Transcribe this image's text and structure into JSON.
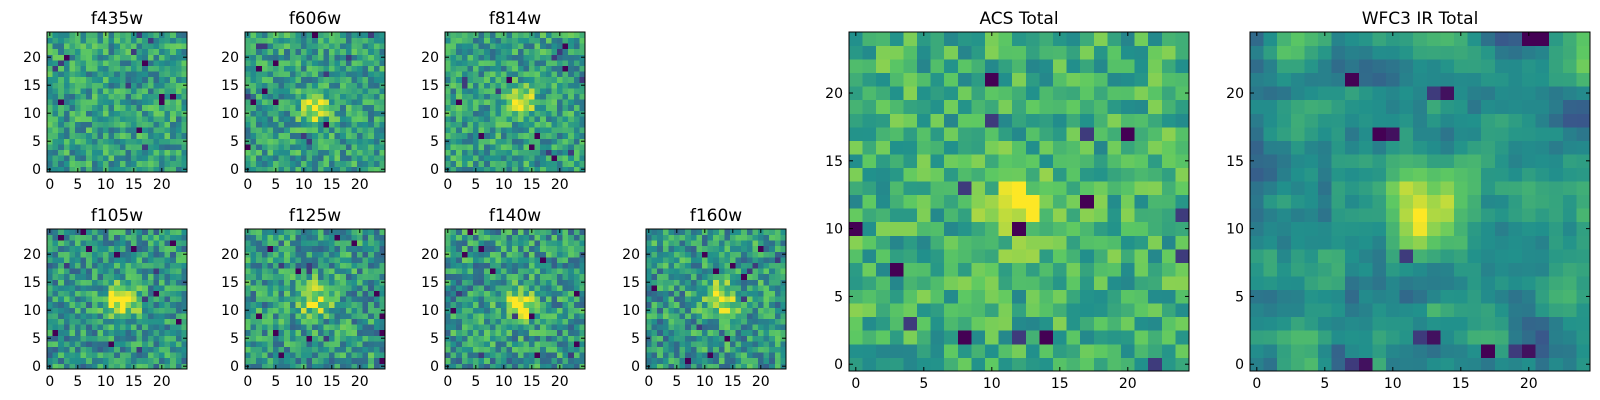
{
  "figure": {
    "colormap": "viridis",
    "colormap_stops": [
      "#440154",
      "#3b528b",
      "#21918c",
      "#5ec962",
      "#fde725"
    ]
  },
  "chart_data": [
    {
      "type": "heatmap",
      "title": "f435w",
      "grid_size": [
        25,
        25
      ],
      "xlim": [
        -0.5,
        24.5
      ],
      "ylim": [
        -0.5,
        24.5
      ],
      "xticks": [
        0,
        5,
        10,
        15,
        20
      ],
      "yticks": [
        0,
        5,
        10,
        15,
        20
      ],
      "origin": "lower",
      "seed": 11,
      "noise_level": [
        0.35,
        0.78
      ],
      "peak": {
        "x": 11,
        "y": 11,
        "sigma": 2.0,
        "amplitude": 0.0
      },
      "dark_pixels": 14
    },
    {
      "type": "heatmap",
      "title": "f606w",
      "grid_size": [
        25,
        25
      ],
      "xlim": [
        -0.5,
        24.5
      ],
      "ylim": [
        -0.5,
        24.5
      ],
      "xticks": [
        0,
        5,
        10,
        15,
        20
      ],
      "yticks": [
        0,
        5,
        10,
        15,
        20
      ],
      "origin": "lower",
      "seed": 23,
      "noise_level": [
        0.35,
        0.78
      ],
      "peak": {
        "x": 12,
        "y": 11,
        "sigma": 1.8,
        "amplitude": 0.45
      },
      "dark_pixels": 16
    },
    {
      "type": "heatmap",
      "title": "f814w",
      "grid_size": [
        25,
        25
      ],
      "xlim": [
        -0.5,
        24.5
      ],
      "ylim": [
        -0.5,
        24.5
      ],
      "xticks": [
        0,
        5,
        10,
        15,
        20
      ],
      "yticks": [
        0,
        5,
        10,
        15,
        20
      ],
      "origin": "lower",
      "seed": 37,
      "noise_level": [
        0.35,
        0.78
      ],
      "peak": {
        "x": 13,
        "y": 12,
        "sigma": 1.8,
        "amplitude": 0.45
      },
      "dark_pixels": 16
    },
    {
      "type": "heatmap",
      "title": "f105w",
      "grid_size": [
        25,
        25
      ],
      "xlim": [
        -0.5,
        24.5
      ],
      "ylim": [
        -0.5,
        24.5
      ],
      "xticks": [
        0,
        5,
        10,
        15,
        20
      ],
      "yticks": [
        0,
        5,
        10,
        15,
        20
      ],
      "origin": "lower",
      "seed": 41,
      "noise_level": [
        0.3,
        0.75
      ],
      "peak": {
        "x": 13,
        "y": 12,
        "sigma": 2.2,
        "amplitude": 0.5
      },
      "dark_pixels": 14
    },
    {
      "type": "heatmap",
      "title": "f125w",
      "grid_size": [
        25,
        25
      ],
      "xlim": [
        -0.5,
        24.5
      ],
      "ylim": [
        -0.5,
        24.5
      ],
      "xticks": [
        0,
        5,
        10,
        15,
        20
      ],
      "yticks": [
        0,
        5,
        10,
        15,
        20
      ],
      "origin": "lower",
      "seed": 53,
      "noise_level": [
        0.3,
        0.78
      ],
      "peak": {
        "x": 12,
        "y": 12,
        "sigma": 2.2,
        "amplitude": 0.35
      },
      "dark_pixels": 16
    },
    {
      "type": "heatmap",
      "title": "f140w",
      "grid_size": [
        25,
        25
      ],
      "xlim": [
        -0.5,
        24.5
      ],
      "ylim": [
        -0.5,
        24.5
      ],
      "xticks": [
        0,
        5,
        10,
        15,
        20
      ],
      "yticks": [
        0,
        5,
        10,
        15,
        20
      ],
      "origin": "lower",
      "seed": 67,
      "noise_level": [
        0.3,
        0.78
      ],
      "peak": {
        "x": 13,
        "y": 11,
        "sigma": 2.2,
        "amplitude": 0.4
      },
      "dark_pixels": 14
    },
    {
      "type": "heatmap",
      "title": "f160w",
      "grid_size": [
        25,
        25
      ],
      "xlim": [
        -0.5,
        24.5
      ],
      "ylim": [
        -0.5,
        24.5
      ],
      "xticks": [
        0,
        5,
        10,
        15,
        20
      ],
      "yticks": [
        0,
        5,
        10,
        15,
        20
      ],
      "origin": "lower",
      "seed": 79,
      "noise_level": [
        0.3,
        0.78
      ],
      "peak": {
        "x": 13,
        "y": 12,
        "sigma": 2.2,
        "amplitude": 0.4
      },
      "dark_pixels": 14
    },
    {
      "type": "heatmap",
      "title": "ACS Total",
      "grid_size": [
        25,
        25
      ],
      "xlim": [
        -0.5,
        24.5
      ],
      "ylim": [
        -0.5,
        24.5
      ],
      "xticks": [
        0,
        5,
        10,
        15,
        20
      ],
      "yticks": [
        0,
        5,
        10,
        15,
        20
      ],
      "origin": "lower",
      "seed": 97,
      "noise_level": [
        0.45,
        0.82
      ],
      "peak": {
        "x": 12,
        "y": 11.5,
        "sigma": 1.6,
        "amplitude": 0.4
      },
      "dark_pixels": 16
    },
    {
      "type": "heatmap",
      "title": "WFC3 IR Total",
      "grid_size": [
        25,
        25
      ],
      "xlim": [
        -0.5,
        24.5
      ],
      "ylim": [
        -0.5,
        24.5
      ],
      "xticks": [
        0,
        5,
        10,
        15,
        20
      ],
      "yticks": [
        0,
        5,
        10,
        15,
        20
      ],
      "origin": "lower",
      "seed": 113,
      "smooth": true,
      "noise_level": [
        0.35,
        0.75
      ],
      "peak": {
        "x": 12.5,
        "y": 11.5,
        "sigma": 2.0,
        "amplitude": 0.45
      },
      "dark_pixels": 10
    }
  ]
}
